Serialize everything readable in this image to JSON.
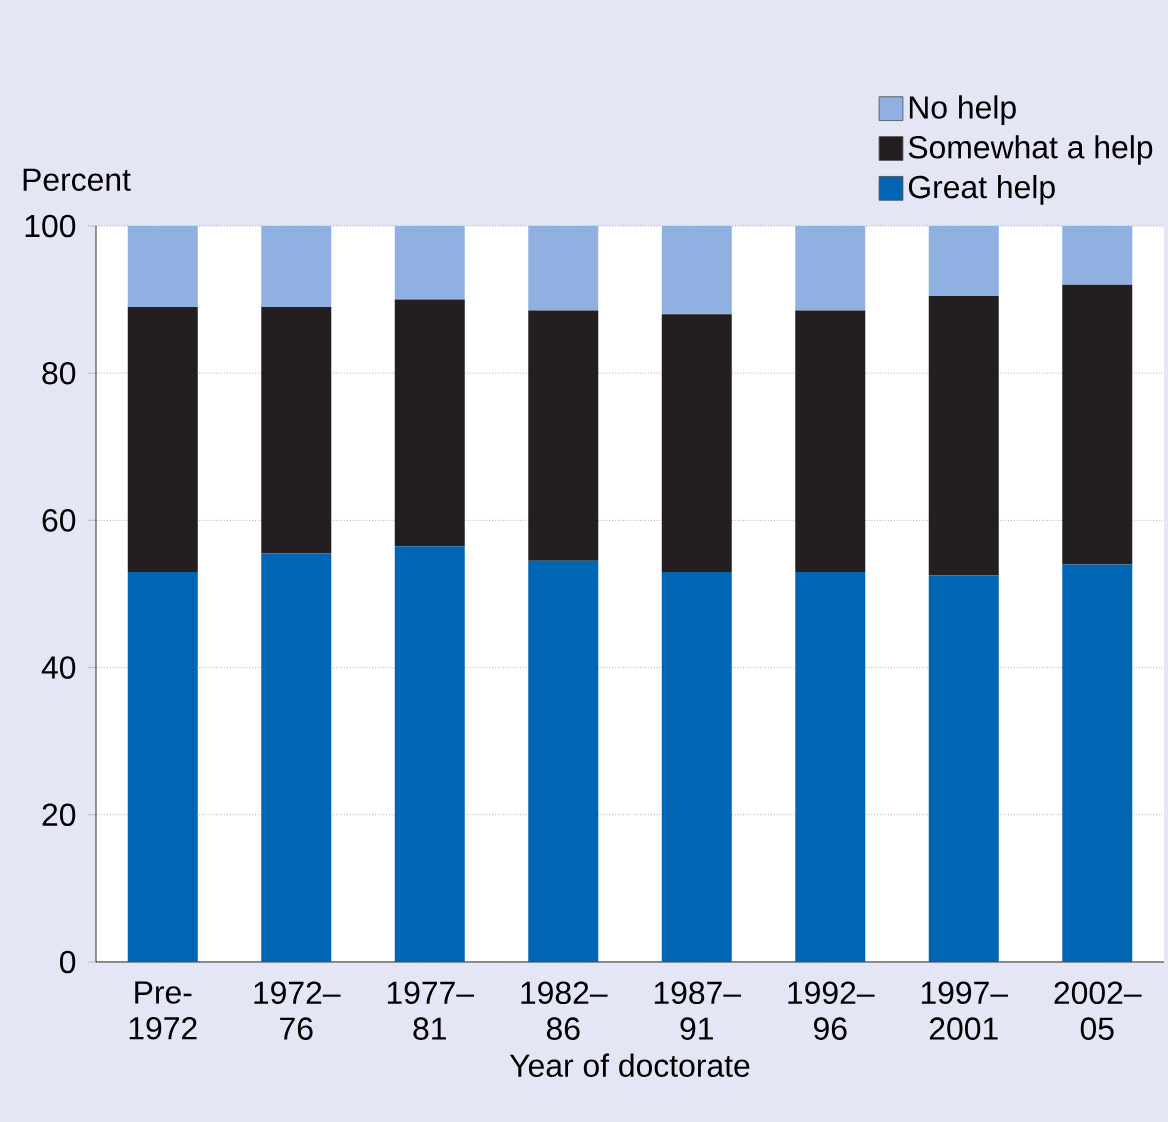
{
  "chart_data": {
    "type": "bar",
    "stacked": true,
    "xlabel": "Year of doctorate",
    "ylabel": "Percent",
    "categories": [
      "Pre- 1972",
      "1972– 76",
      "1977– 81",
      "1982– 86",
      "1987– 91",
      "1992– 96",
      "1997– 2001",
      "2002– 05"
    ],
    "series": [
      {
        "name": "Great help",
        "color": "#0066b3",
        "values": [
          53,
          55.5,
          56.5,
          54.5,
          53,
          53,
          52.5,
          54
        ]
      },
      {
        "name": "Somewhat a help",
        "color": "#231f20",
        "values": [
          36,
          33.5,
          33.5,
          34,
          35,
          35.5,
          38,
          38
        ]
      },
      {
        "name": "No help",
        "color": "#8fb0e0",
        "values": [
          11,
          11,
          10,
          11.5,
          12,
          11.5,
          9.5,
          8
        ]
      }
    ],
    "ylim": [
      0,
      100
    ],
    "yticks": [
      0,
      20,
      40,
      60,
      80,
      100
    ],
    "grid": "y",
    "legend": "top right"
  }
}
